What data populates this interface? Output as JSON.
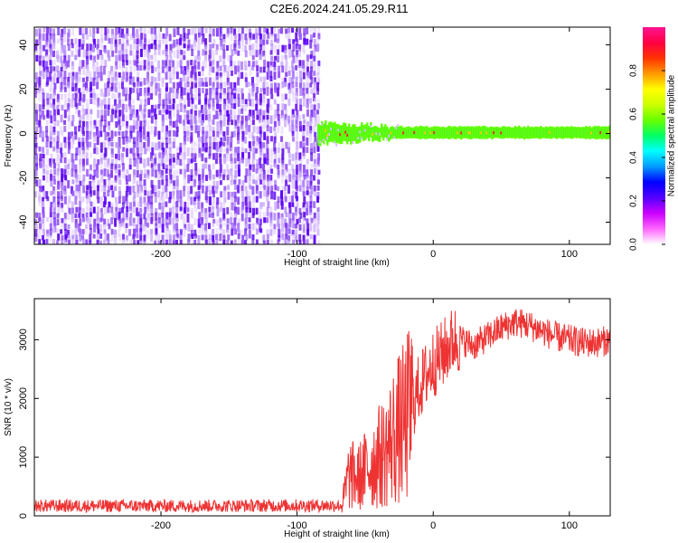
{
  "page": {
    "title": "C2E6.2024.241.05.29.R11"
  },
  "colors": {
    "trace": "#ee3333",
    "background": "#ffffff",
    "axis": "#000000",
    "colormap": [
      "#ffffff",
      "#e0c8ff",
      "#b890ff",
      "#8a2be2",
      "#6a10ff",
      "#0000ff",
      "#00aaff",
      "#00ffff",
      "#00ff66",
      "#7cfc00",
      "#ffff00",
      "#ff8c00",
      "#ff0000",
      "#ff1493"
    ]
  },
  "chart_data": [
    {
      "type": "heatmap",
      "title": "",
      "xlabel": "Height of straight line (km)",
      "ylabel": "Frequency (Hz)",
      "xlim": [
        -293,
        130
      ],
      "ylim": [
        -50,
        48
      ],
      "xticks": [
        -200,
        -100,
        0,
        100
      ],
      "yticks": [
        -40,
        -20,
        0,
        20,
        40
      ],
      "noise_region_x": [
        -293,
        -85
      ],
      "signal_region_x": [
        -85,
        130
      ],
      "signal_center_hz": 0,
      "colorbar": {
        "label": "Normalized spectral amplitude",
        "range": [
          0.0,
          1.0
        ],
        "ticks": [
          0.0,
          0.2,
          0.4,
          0.6,
          0.8
        ]
      }
    },
    {
      "type": "line",
      "title": "",
      "xlabel": "Height of straight line (km)",
      "ylabel": "SNR (10 * v/v)",
      "xlim": [
        -293,
        130
      ],
      "ylim": [
        0,
        3700
      ],
      "xticks": [
        -200,
        -100,
        0,
        100
      ],
      "yticks": [
        0,
        1000,
        2000,
        3000
      ],
      "series": [
        {
          "x": [
            -293,
            -200,
            -100,
            -67,
            -62,
            -55,
            -45,
            -35,
            -28,
            -20,
            -15,
            -10,
            -5,
            0,
            5,
            10,
            15,
            20,
            30,
            40,
            50,
            60,
            70,
            80,
            90,
            100,
            110,
            120,
            130
          ],
          "values": [
            170,
            170,
            175,
            180,
            700,
            650,
            900,
            1100,
            1400,
            1600,
            1900,
            2200,
            2400,
            2600,
            2700,
            2850,
            3000,
            3000,
            2900,
            3050,
            3200,
            3300,
            3250,
            3150,
            3050,
            3000,
            2950,
            2950,
            3000
          ]
        }
      ]
    }
  ]
}
